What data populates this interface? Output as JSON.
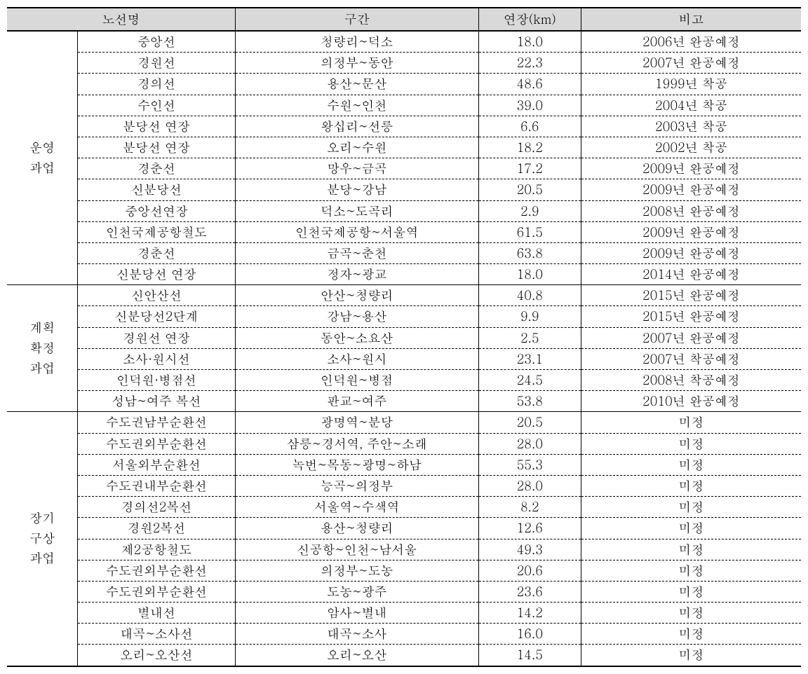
{
  "headers": {
    "line_name": "노선명",
    "section": "구간",
    "length": "연장(km)",
    "remark": "비고"
  },
  "groups": [
    {
      "label": "운영\n과업",
      "rows": [
        {
          "line": "중앙선",
          "section": "청량리~덕소",
          "length": "18.0",
          "remark": "2006년 완공예정"
        },
        {
          "line": "경원선",
          "section": "의정부~동안",
          "length": "22.3",
          "remark": "2007년 완공예정"
        },
        {
          "line": "경의선",
          "section": "용산~문산",
          "length": "48.6",
          "remark": "1999년 착공"
        },
        {
          "line": "수인선",
          "section": "수원~인천",
          "length": "39.0",
          "remark": "2004년 착공"
        },
        {
          "line": "분당선 연장",
          "section": "왕십리~선릉",
          "length": "6.6",
          "remark": "2003년 착공"
        },
        {
          "line": "분당선 연장",
          "section": "오리~수원",
          "length": "18.2",
          "remark": "2002년 착공"
        },
        {
          "line": "경춘선",
          "section": "망우~금곡",
          "length": "17.2",
          "remark": "2009년 완공예정"
        },
        {
          "line": "신분당선",
          "section": "분당~강남",
          "length": "20.5",
          "remark": "2009년 완공예정"
        },
        {
          "line": "중앙선연장",
          "section": "덕소~도곡리",
          "length": "2.9",
          "remark": "2008년 완공예정"
        },
        {
          "line": "인천국제공항철도",
          "section": "인천국제공항~서울역",
          "length": "61.5",
          "remark": "2009년 완공예정"
        },
        {
          "line": "경춘선",
          "section": "금곡~춘천",
          "length": "63.8",
          "remark": "2009년 완공예정"
        },
        {
          "line": "신분당선 연장",
          "section": "정자~광교",
          "length": "18.0",
          "remark": "2014년 완공예정"
        }
      ]
    },
    {
      "label": "계획\n확정\n과업",
      "rows": [
        {
          "line": "신안산선",
          "section": "안산~청량리",
          "length": "40.8",
          "remark": "2015년 완공예정"
        },
        {
          "line": "신분당선2단계",
          "section": "강남~용산",
          "length": "9.9",
          "remark": "2015년 완공예정"
        },
        {
          "line": "경원선 연장",
          "section": "동안~소요산",
          "length": "2.5",
          "remark": "2007년 완공예정"
        },
        {
          "line": "소사·원시선",
          "section": "소사~원시",
          "length": "23.1",
          "remark": "2007년 착공예정"
        },
        {
          "line": "인덕원·병점선",
          "section": "인덕원~병점",
          "length": "24.5",
          "remark": "2008년 착공예정"
        },
        {
          "line": "성남~여주 복선",
          "section": "판교~여주",
          "length": "53.8",
          "remark": "2010년 완공예정"
        }
      ]
    },
    {
      "label": "장기\n구상\n과업",
      "rows": [
        {
          "line": "수도권남부순환선",
          "section": "광명역~분당",
          "length": "20.5",
          "remark": "미정"
        },
        {
          "line": "수도권외부순환선",
          "section": "삼릉~경서역, 주안~소래",
          "length": "28.0",
          "remark": "미정"
        },
        {
          "line": "서울외부순환선",
          "section": "녹번~목동~광명~하남",
          "length": "55.3",
          "remark": "미정"
        },
        {
          "line": "수도권내부순환선",
          "section": "능곡~의정부",
          "length": "28.0",
          "remark": "미정"
        },
        {
          "line": "경의선2복선",
          "section": "서울역~수색역",
          "length": "8.2",
          "remark": "미정"
        },
        {
          "line": "경원2복선",
          "section": "용산~청량리",
          "length": "12.6",
          "remark": "미정"
        },
        {
          "line": "제2공항철도",
          "section": "신공항~인천~남서울",
          "length": "49.3",
          "remark": "미정"
        },
        {
          "line": "수도권외부순환선",
          "section": "의정부~도농",
          "length": "20.6",
          "remark": "미정"
        },
        {
          "line": "수도권외부순환선",
          "section": "도농~광주",
          "length": "23.6",
          "remark": "미정"
        },
        {
          "line": "별내선",
          "section": "암사~별내",
          "length": "14.2",
          "remark": "미정"
        },
        {
          "line": "대곡~소사선",
          "section": "대곡~소사",
          "length": "16.0",
          "remark": "미정"
        },
        {
          "line": "오리~오산선",
          "section": "오리~오산",
          "length": "14.5",
          "remark": "미정"
        }
      ]
    }
  ]
}
